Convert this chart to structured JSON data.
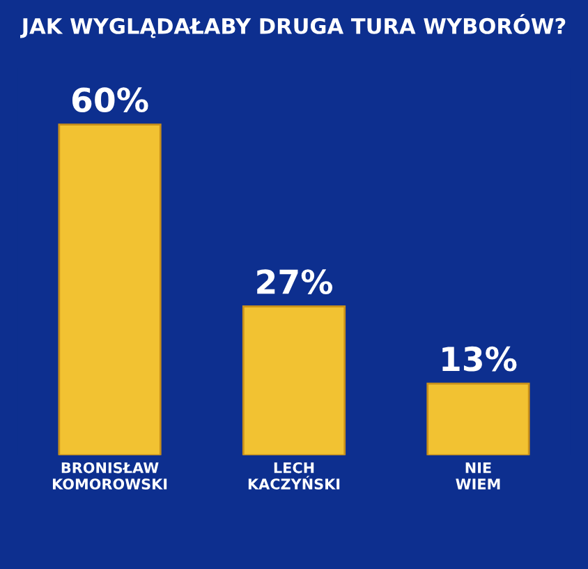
{
  "chart_data": {
    "type": "bar",
    "title": "JAK WYGLĄDAŁABY DRUGA TURA WYBORÓW?",
    "categories": [
      "BRONISŁAW\nKOMOROWSKI",
      "LECH\nKACZYŃSKI",
      "NIE\nWIEM"
    ],
    "values": [
      60,
      27,
      13
    ],
    "value_labels": [
      "60%",
      "27%",
      "13%"
    ],
    "color": "#f2c232",
    "tick_labels": "x",
    "grid": false,
    "legend": false
  }
}
